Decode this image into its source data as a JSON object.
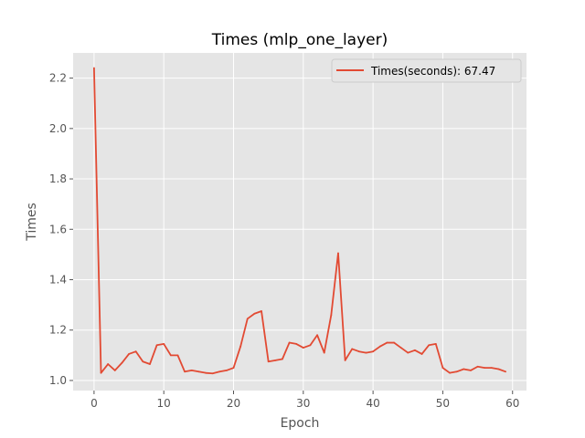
{
  "chart_data": {
    "type": "line",
    "title": "Times (mlp_one_layer)",
    "xlabel": "Epoch",
    "ylabel": "Times",
    "xlim": [
      -3,
      62
    ],
    "ylim": [
      0.96,
      2.3
    ],
    "xticks": [
      0,
      10,
      20,
      30,
      40,
      50,
      60
    ],
    "yticks": [
      1.0,
      1.2,
      1.4,
      1.6,
      1.8,
      2.0,
      2.2
    ],
    "ytick_labels": [
      "1.0",
      "1.2",
      "1.4",
      "1.6",
      "1.8",
      "2.0",
      "2.2"
    ],
    "grid": true,
    "legend_position": "upper right",
    "colors": {
      "background": "#e5e5e5",
      "grid": "#ffffff",
      "line": "#e24a33",
      "tick": "#555555"
    },
    "series": [
      {
        "name": "Times(seconds): 67.47",
        "x": [
          0,
          1,
          2,
          3,
          4,
          5,
          6,
          7,
          8,
          9,
          10,
          11,
          12,
          13,
          14,
          15,
          16,
          17,
          18,
          19,
          20,
          21,
          22,
          23,
          24,
          25,
          26,
          27,
          28,
          29,
          30,
          31,
          32,
          33,
          34,
          35,
          36,
          37,
          38,
          39,
          40,
          41,
          42,
          43,
          44,
          45,
          46,
          47,
          48,
          49,
          50,
          51,
          52,
          53,
          54,
          55,
          56,
          57,
          58,
          59
        ],
        "values": [
          2.24,
          1.03,
          1.065,
          1.04,
          1.07,
          1.105,
          1.115,
          1.075,
          1.065,
          1.14,
          1.145,
          1.1,
          1.1,
          1.035,
          1.04,
          1.035,
          1.03,
          1.028,
          1.035,
          1.04,
          1.05,
          1.135,
          1.245,
          1.265,
          1.275,
          1.075,
          1.08,
          1.085,
          1.15,
          1.145,
          1.13,
          1.14,
          1.18,
          1.11,
          1.26,
          1.505,
          1.08,
          1.125,
          1.115,
          1.11,
          1.115,
          1.135,
          1.15,
          1.15,
          1.13,
          1.11,
          1.12,
          1.105,
          1.14,
          1.145,
          1.05,
          1.03,
          1.035,
          1.045,
          1.04,
          1.055,
          1.05,
          1.05,
          1.045,
          1.035
        ]
      }
    ]
  }
}
